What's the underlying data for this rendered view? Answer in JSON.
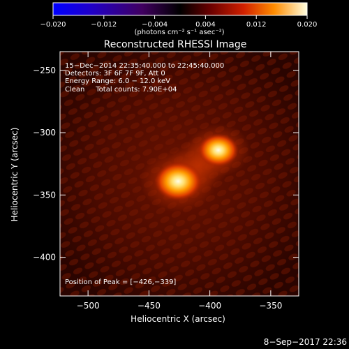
{
  "colorbar": {
    "tick_labels": [
      "−0.020",
      "−0.012",
      "−0.004",
      "0.004",
      "0.012",
      "0.020"
    ],
    "unit_label": "(photons cm⁻² s⁻¹ asec⁻²)",
    "range": [
      -0.02,
      0.02
    ]
  },
  "title": "Reconstructed RHESSI Image",
  "annotations": {
    "line1": "15−Dec−2014 22:35:40.000 to 22:45:40.000",
    "line2": "Detectors: 3F 6F 7F 9F, Att 0",
    "line3": "Energy Range: 6.0 − 12.0 keV",
    "line4": "Clean     Total counts: 7.90E+04",
    "peak": "Position of Peak = [−426,−339]"
  },
  "axes": {
    "xlabel": "Heliocentric X (arcsec)",
    "ylabel": "Heliocentric Y (arcsec)",
    "x_ticks": [
      {
        "value": -500,
        "label": "−500"
      },
      {
        "value": -450,
        "label": "−450"
      },
      {
        "value": -400,
        "label": "−400"
      },
      {
        "value": -350,
        "label": "−350"
      }
    ],
    "y_ticks": [
      {
        "value": -250,
        "label": "−250"
      },
      {
        "value": -300,
        "label": "−300"
      },
      {
        "value": -350,
        "label": "−350"
      },
      {
        "value": -400,
        "label": "−400"
      }
    ],
    "xlim": [
      -523,
      -327
    ],
    "ylim": [
      -431,
      -235
    ]
  },
  "sources": [
    {
      "x": -426,
      "y": -339,
      "intensity": 1.0
    },
    {
      "x": -393,
      "y": -314,
      "intensity": 0.85
    }
  ],
  "footer": {
    "timestamp": "8−Sep−2017 22:36"
  }
}
